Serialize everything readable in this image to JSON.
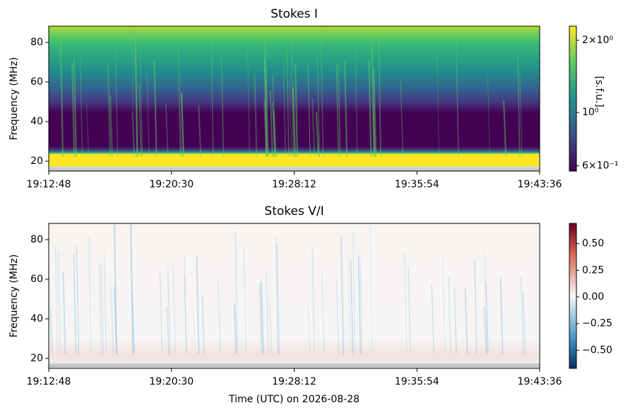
{
  "chart_data": [
    {
      "type": "spectrogram",
      "title": "Stokes I",
      "y_label": "Frequency (MHz)",
      "xticks": [
        "19:12:48",
        "19:20:30",
        "19:28:12",
        "19:35:54",
        "19:43:36"
      ],
      "ylim": [
        15,
        88.2
      ],
      "yticks": [
        20,
        40,
        60,
        80
      ],
      "colormap": "viridis",
      "colorbar_label": "[s.f.u.]",
      "colorbar_log": true,
      "clim": [
        0.57,
        2.29
      ],
      "colorbar_ticks": [
        {
          "value": 2,
          "label": "2×10⁰"
        },
        {
          "value": 1,
          "label": "10⁰"
        },
        {
          "value": 0.6,
          "label": "6×10⁻¹"
        }
      ]
    },
    {
      "type": "spectrogram",
      "title": "Stokes V/I",
      "y_label": "Frequency (MHz)",
      "x_label": "Time (UTC) on 2026-08-28",
      "xticks": [
        "19:12:48",
        "19:20:30",
        "19:28:12",
        "19:35:54",
        "19:43:36"
      ],
      "ylim": [
        15,
        88.2
      ],
      "yticks": [
        20,
        40,
        60,
        80
      ],
      "colormap": "RdBu_r",
      "colorbar_log": false,
      "clim": [
        -0.67,
        0.69
      ],
      "colorbar_ticks": [
        {
          "value": 0.5,
          "label": "0.50"
        },
        {
          "value": 0.25,
          "label": "0.25"
        },
        {
          "value": 0,
          "label": "0.00"
        },
        {
          "value": -0.25,
          "label": "−0.25"
        },
        {
          "value": -0.5,
          "label": "−0.50"
        }
      ]
    }
  ]
}
